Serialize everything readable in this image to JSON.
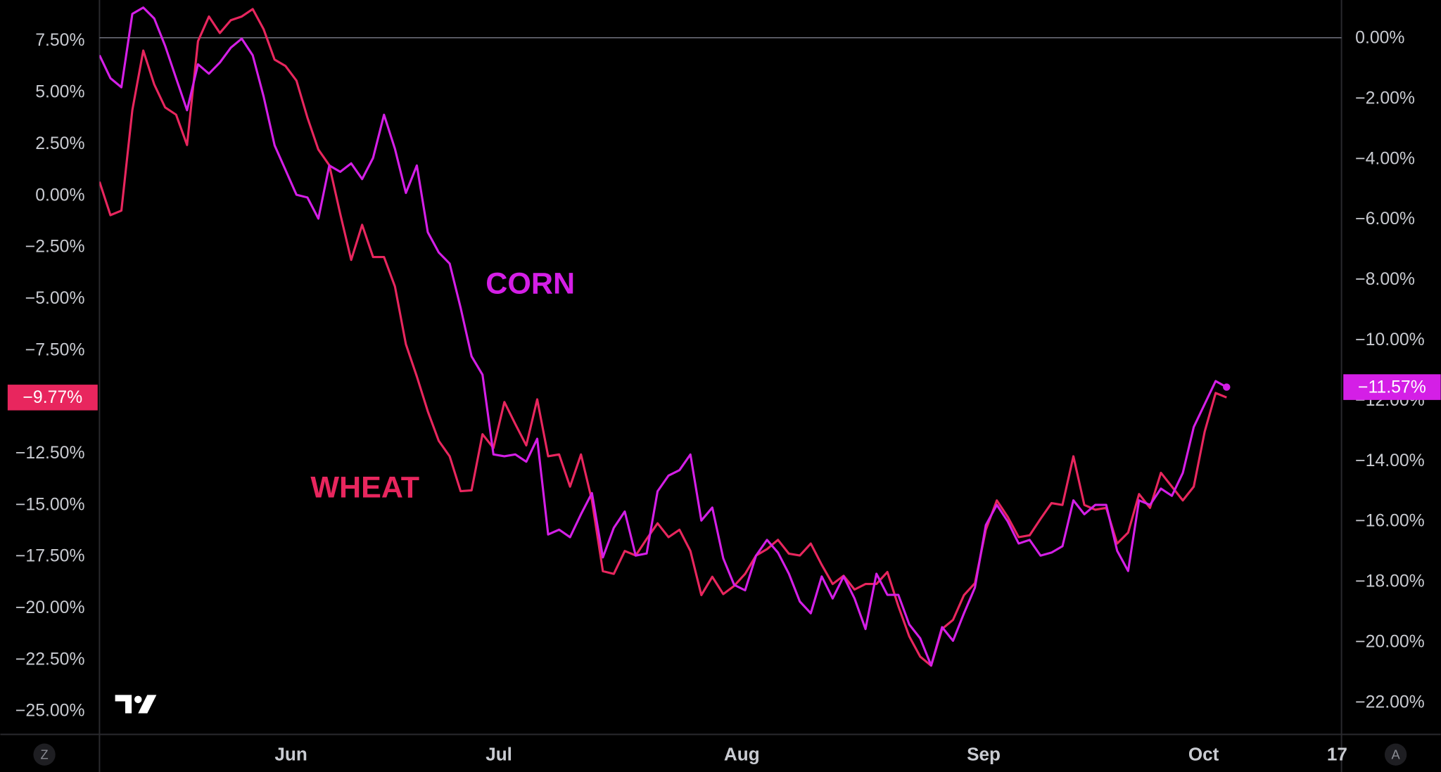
{
  "chart_data": {
    "type": "line",
    "x": [
      0,
      1,
      2,
      3,
      4,
      5,
      6,
      7,
      8,
      9,
      10,
      11,
      12,
      13,
      14,
      15,
      16,
      17,
      18,
      19,
      20,
      21,
      22,
      23,
      24,
      25,
      26,
      27,
      28,
      29,
      30,
      31,
      32,
      33,
      34,
      35,
      36,
      37,
      38,
      39,
      40,
      41,
      42,
      43,
      44,
      45,
      46,
      47,
      48,
      49,
      50,
      51,
      52,
      53,
      54,
      55,
      56,
      57,
      58,
      59,
      60,
      61,
      62,
      63,
      64,
      65,
      66,
      67,
      68,
      69,
      70,
      71,
      72,
      73,
      74,
      75,
      76,
      77,
      78,
      79,
      80,
      81,
      82,
      83,
      84,
      85,
      86,
      87,
      88,
      89,
      90,
      91,
      92,
      93,
      94,
      95,
      96,
      97,
      98,
      99,
      100,
      101,
      102,
      103
    ],
    "xlim": [
      0,
      113.5
    ],
    "xticks": [
      {
        "value": 17.5,
        "label": "Jun"
      },
      {
        "value": 36.5,
        "label": "Jul"
      },
      {
        "value": 58.7,
        "label": "Aug"
      },
      {
        "value": 80.8,
        "label": "Sep"
      },
      {
        "value": 100.9,
        "label": "Oct"
      },
      {
        "value": 113.1,
        "label": "17"
      }
    ],
    "ylim": [
      -26.1,
      9.5
    ],
    "yticks": [
      {
        "value": 7.5,
        "label": "7.50%"
      },
      {
        "value": 5,
        "label": "5.00%"
      },
      {
        "value": 2.5,
        "label": "2.50%"
      },
      {
        "value": 0,
        "label": "0.00%"
      },
      {
        "value": -2.5,
        "label": "−2.50%"
      },
      {
        "value": -5,
        "label": "−5.00%"
      },
      {
        "value": -7.5,
        "label": "−7.50%"
      },
      {
        "value": -12.5,
        "label": "−12.50%"
      },
      {
        "value": -15,
        "label": "−15.00%"
      },
      {
        "value": -17.5,
        "label": "−17.50%"
      },
      {
        "value": -20,
        "label": "−20.00%"
      },
      {
        "value": -22.5,
        "label": "−22.50%"
      },
      {
        "value": -25,
        "label": "−25.00%"
      }
    ],
    "y2lim": [
      -23.07,
      1.25
    ],
    "y2ticks": [
      {
        "value": 0,
        "label": "0.00%"
      },
      {
        "value": -2,
        "label": "−2.00%"
      },
      {
        "value": -4,
        "label": "−4.00%"
      },
      {
        "value": -6,
        "label": "−6.00%"
      },
      {
        "value": -8,
        "label": "−8.00%"
      },
      {
        "value": -10,
        "label": "−10.00%"
      },
      {
        "value": -12,
        "label": "−12.00%"
      },
      {
        "value": -14,
        "label": "−14.00%"
      },
      {
        "value": -16,
        "label": "−16.00%"
      },
      {
        "value": -18,
        "label": "−18.00%"
      },
      {
        "value": -20,
        "label": "−20.00%"
      },
      {
        "value": -22,
        "label": "−22.00%"
      }
    ],
    "y2_reference_line": 0,
    "series": [
      {
        "name": "WHEAT",
        "color": "#e8265e",
        "axis": "y",
        "last_label": "−9.77%",
        "values": [
          0.69,
          -0.93,
          -0.71,
          4.16,
          7.05,
          5.41,
          4.29,
          3.94,
          2.47,
          7.5,
          8.7,
          7.9,
          8.52,
          8.7,
          9.06,
          8.08,
          6.61,
          6.3,
          5.59,
          3.8,
          2.25,
          1.49,
          -0.87,
          -3.1,
          -1.4,
          -2.96,
          -2.96,
          -4.39,
          -7.19,
          -8.75,
          -10.44,
          -11.87,
          -12.62,
          -14.31,
          -14.27,
          -11.55,
          -12.22,
          -9.99,
          -11.06,
          -12.09,
          -9.86,
          -12.62,
          -12.53,
          -14.09,
          -12.53,
          -14.76,
          -18.19,
          -18.32,
          -17.21,
          -17.43,
          -16.63,
          -15.87,
          -16.54,
          -16.18,
          -17.21,
          -19.35,
          -18.46,
          -19.3,
          -18.9,
          -18.32,
          -17.43,
          -17.12,
          -16.67,
          -17.34,
          -17.43,
          -16.85,
          -17.88,
          -18.81,
          -18.41,
          -19.08,
          -18.81,
          -18.81,
          -18.23,
          -19.88,
          -21.35,
          -22.33,
          -22.77,
          -20.99,
          -20.55,
          -19.35,
          -18.77,
          -16.18,
          -14.76,
          -15.56,
          -16.54,
          -16.45,
          -15.65,
          -14.89,
          -14.98,
          -12.62,
          -14.98,
          -15.21,
          -15.12,
          -16.85,
          -16.32,
          -14.45,
          -15.12,
          -13.42,
          -14.09,
          -14.76,
          -14.09,
          -11.42,
          -9.55,
          -9.77
        ]
      },
      {
        "name": "CORN",
        "color": "#d41fe6",
        "axis": "y2",
        "last_label": "−11.57%",
        "values": [
          -0.58,
          -1.34,
          -1.64,
          0.79,
          1.0,
          0.64,
          -0.27,
          -1.34,
          -2.4,
          -0.88,
          -1.19,
          -0.82,
          -0.33,
          -0.03,
          -0.58,
          -1.95,
          -3.56,
          -4.38,
          -5.2,
          -5.29,
          -5.99,
          -4.23,
          -4.44,
          -4.16,
          -4.68,
          -3.98,
          -2.55,
          -3.68,
          -5.14,
          -4.23,
          -6.44,
          -7.11,
          -7.48,
          -8.94,
          -10.55,
          -11.16,
          -13.8,
          -13.86,
          -13.8,
          -14.04,
          -13.28,
          -16.45,
          -16.29,
          -16.54,
          -15.78,
          -15.08,
          -17.21,
          -16.23,
          -15.69,
          -17.15,
          -17.08,
          -15.02,
          -14.5,
          -14.32,
          -13.8,
          -15.99,
          -15.56,
          -17.24,
          -18.12,
          -18.3,
          -17.15,
          -16.63,
          -17.05,
          -17.75,
          -18.67,
          -19.06,
          -17.84,
          -18.57,
          -17.84,
          -18.57,
          -19.58,
          -17.75,
          -18.45,
          -18.45,
          -19.43,
          -19.89,
          -20.79,
          -19.52,
          -19.97,
          -19.06,
          -18.21,
          -16.14,
          -15.47,
          -16.02,
          -16.75,
          -16.63,
          -17.15,
          -17.05,
          -16.84,
          -15.32,
          -15.78,
          -15.47,
          -15.47,
          -16.99,
          -17.66,
          -15.32,
          -15.47,
          -14.93,
          -15.17,
          -14.41,
          -12.89,
          -12.13,
          -11.37,
          -11.57
        ]
      }
    ],
    "buttons": [
      "Z",
      "A"
    ]
  }
}
